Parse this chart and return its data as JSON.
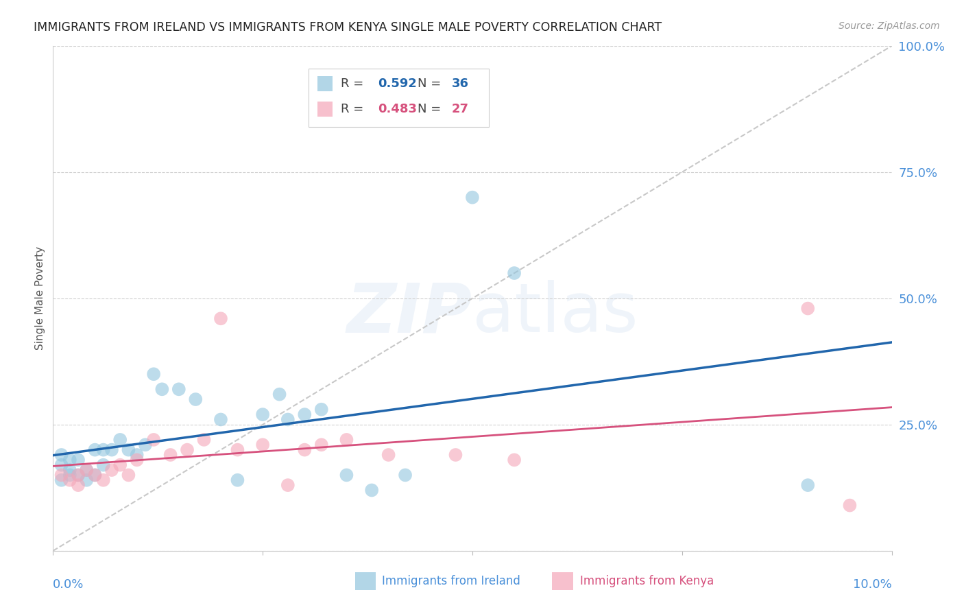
{
  "title": "IMMIGRANTS FROM IRELAND VS IMMIGRANTS FROM KENYA SINGLE MALE POVERTY CORRELATION CHART",
  "source": "Source: ZipAtlas.com",
  "ylabel": "Single Male Poverty",
  "legend_ireland_r": "0.592",
  "legend_ireland_n": "36",
  "legend_kenya_r": "0.483",
  "legend_kenya_n": "27",
  "ireland_color": "#92c5de",
  "kenya_color": "#f4a6b8",
  "ireland_line_color": "#2166ac",
  "kenya_line_color": "#d6517d",
  "diagonal_color": "#c8c8c8",
  "background_color": "#ffffff",
  "grid_color": "#d0d0d0",
  "axis_label_color": "#4a90d9",
  "title_color": "#222222",
  "source_color": "#999999",
  "ylabel_color": "#555555",
  "ireland_scatter_x": [
    0.001,
    0.001,
    0.001,
    0.002,
    0.002,
    0.002,
    0.003,
    0.003,
    0.004,
    0.004,
    0.005,
    0.005,
    0.006,
    0.006,
    0.007,
    0.008,
    0.009,
    0.01,
    0.011,
    0.012,
    0.013,
    0.015,
    0.017,
    0.02,
    0.022,
    0.025,
    0.027,
    0.028,
    0.03,
    0.032,
    0.035,
    0.038,
    0.042,
    0.05,
    0.055,
    0.09
  ],
  "ireland_scatter_y": [
    0.14,
    0.17,
    0.19,
    0.15,
    0.16,
    0.18,
    0.15,
    0.18,
    0.16,
    0.14,
    0.15,
    0.2,
    0.17,
    0.2,
    0.2,
    0.22,
    0.2,
    0.19,
    0.21,
    0.35,
    0.32,
    0.32,
    0.3,
    0.26,
    0.14,
    0.27,
    0.31,
    0.26,
    0.27,
    0.28,
    0.15,
    0.12,
    0.15,
    0.7,
    0.55,
    0.13
  ],
  "kenya_scatter_x": [
    0.001,
    0.002,
    0.003,
    0.003,
    0.004,
    0.005,
    0.006,
    0.007,
    0.008,
    0.009,
    0.01,
    0.012,
    0.014,
    0.016,
    0.018,
    0.02,
    0.022,
    0.025,
    0.028,
    0.03,
    0.032,
    0.035,
    0.04,
    0.048,
    0.055,
    0.09,
    0.095
  ],
  "kenya_scatter_y": [
    0.15,
    0.14,
    0.13,
    0.15,
    0.16,
    0.15,
    0.14,
    0.16,
    0.17,
    0.15,
    0.18,
    0.22,
    0.19,
    0.2,
    0.22,
    0.46,
    0.2,
    0.21,
    0.13,
    0.2,
    0.21,
    0.22,
    0.19,
    0.19,
    0.18,
    0.48,
    0.09
  ],
  "xlim": [
    0.0,
    0.1
  ],
  "ylim": [
    0.0,
    1.0
  ],
  "yticks": [
    0.0,
    0.25,
    0.5,
    0.75,
    1.0
  ],
  "ytick_labels": [
    "",
    "25.0%",
    "50.0%",
    "75.0%",
    "100.0%"
  ],
  "figsize": [
    14.06,
    8.92
  ],
  "dpi": 100
}
